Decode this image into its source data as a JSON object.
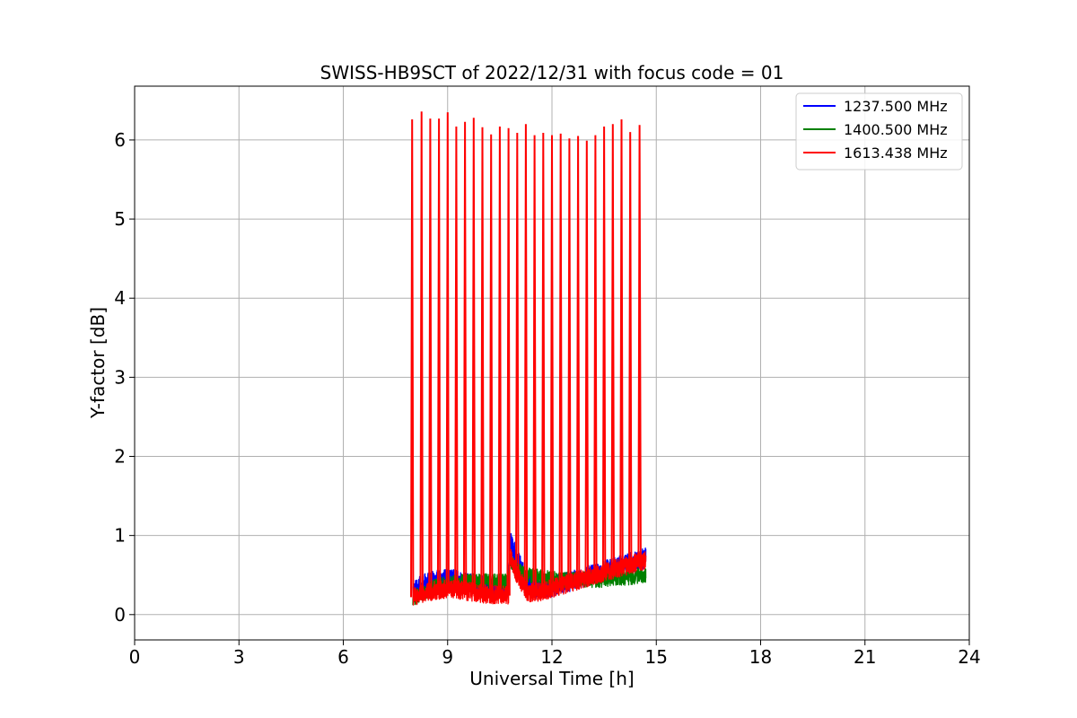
{
  "chart_data": {
    "type": "line",
    "title": "SWISS-HB9SCT of 2022/12/31 with focus code = 01",
    "xlabel": "Universal Time [h]",
    "ylabel": "Y-factor [dB]",
    "xlim": [
      0,
      24
    ],
    "ylim": [
      -0.32,
      6.68
    ],
    "xticks": [
      0,
      3,
      6,
      9,
      12,
      15,
      18,
      21,
      24
    ],
    "yticks": [
      0,
      1,
      2,
      3,
      4,
      5,
      6
    ],
    "grid": true,
    "legend_position": "top-right",
    "series": [
      {
        "name": "1237.500 MHz",
        "color": "#0000ff",
        "x": [
          8.0,
          8.3,
          8.6,
          8.9,
          9.2,
          9.5,
          9.8,
          10.1,
          10.4,
          10.75,
          10.8,
          11.0,
          11.3,
          11.6,
          11.9,
          12.2,
          12.5,
          12.8,
          13.1,
          13.4,
          13.7,
          14.0,
          14.3,
          14.6,
          14.7
        ],
        "y": [
          0.3,
          0.38,
          0.42,
          0.45,
          0.44,
          0.4,
          0.38,
          0.36,
          0.35,
          0.34,
          0.92,
          0.7,
          0.4,
          0.32,
          0.34,
          0.38,
          0.42,
          0.46,
          0.5,
          0.54,
          0.58,
          0.62,
          0.66,
          0.7,
          0.72
        ]
      },
      {
        "name": "1400.500 MHz",
        "color": "#008000",
        "x": [
          8.0,
          8.3,
          8.6,
          8.9,
          9.2,
          9.5,
          9.8,
          10.1,
          10.4,
          10.75,
          10.8,
          11.0,
          11.3,
          11.6,
          11.9,
          12.2,
          12.5,
          12.8,
          13.1,
          13.4,
          13.7,
          14.0,
          14.3,
          14.6,
          14.7
        ],
        "y": [
          0.2,
          0.28,
          0.34,
          0.38,
          0.4,
          0.42,
          0.42,
          0.42,
          0.42,
          0.42,
          0.7,
          0.55,
          0.5,
          0.48,
          0.46,
          0.44,
          0.44,
          0.45,
          0.44,
          0.44,
          0.46,
          0.46,
          0.48,
          0.5,
          0.5
        ]
      },
      {
        "name": "1613.438 MHz",
        "color": "#ff0000",
        "x": [
          8.0,
          8.3,
          8.6,
          8.9,
          9.2,
          9.5,
          9.8,
          10.1,
          10.4,
          10.75,
          10.8,
          11.0,
          11.3,
          11.6,
          11.9,
          12.2,
          12.5,
          12.8,
          13.1,
          13.4,
          13.7,
          14.0,
          14.3,
          14.6,
          14.7
        ],
        "y": [
          0.22,
          0.26,
          0.3,
          0.32,
          0.32,
          0.3,
          0.28,
          0.26,
          0.25,
          0.24,
          0.75,
          0.5,
          0.28,
          0.28,
          0.32,
          0.36,
          0.4,
          0.44,
          0.48,
          0.52,
          0.56,
          0.6,
          0.64,
          0.68,
          0.7
        ],
        "spikes": {
          "x": [
            7.98,
            8.25,
            8.5,
            8.75,
            9.0,
            9.25,
            9.5,
            9.75,
            10.0,
            10.25,
            10.5,
            10.75,
            11.0,
            11.25,
            11.5,
            11.75,
            12.0,
            12.25,
            12.5,
            12.75,
            13.0,
            13.25,
            13.5,
            13.75,
            14.0,
            14.25,
            14.52
          ],
          "y": [
            6.26,
            6.36,
            6.27,
            6.27,
            6.35,
            6.17,
            6.23,
            6.28,
            6.16,
            6.07,
            6.17,
            6.15,
            6.09,
            6.2,
            6.06,
            6.09,
            6.06,
            6.08,
            6.02,
            6.05,
            5.99,
            6.06,
            6.17,
            6.2,
            6.26,
            6.1,
            6.19
          ]
        }
      }
    ]
  }
}
